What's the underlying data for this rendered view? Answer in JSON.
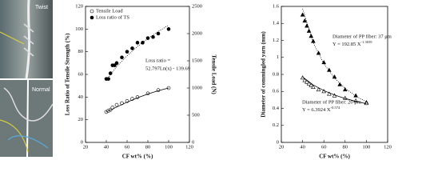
{
  "photos": {
    "top_label": "Twist",
    "bottom_label": "Normal"
  },
  "chart_data": [
    {
      "type": "scatter",
      "x_label": "CF wt% (%)",
      "y_label": "Loss Ratio of Tensile Strength (%)",
      "y2_label": "Tensile Load (N)",
      "xlim": [
        20,
        120
      ],
      "xticks": [
        20,
        40,
        60,
        80,
        100,
        120
      ],
      "ylim": [
        0,
        120
      ],
      "yticks": [
        0,
        20,
        40,
        60,
        80,
        100,
        120
      ],
      "y2lim": [
        0,
        2500
      ],
      "y2ticks": [
        0,
        500,
        1000,
        1500,
        2000,
        2500
      ],
      "legend": "top-left",
      "annotations": [
        "Loss ratio =",
        "52.797Ln(x) - 139.69"
      ],
      "series": [
        {
          "name": "Tensile Load",
          "marker": "circle-open",
          "axis": "y2",
          "x": [
            40,
            42,
            44,
            46,
            50,
            55,
            60,
            65,
            70,
            80,
            90,
            100
          ],
          "values": [
            560,
            580,
            600,
            640,
            690,
            720,
            760,
            800,
            830,
            900,
            960,
            1000
          ]
        },
        {
          "name": "Loss ratio of TS",
          "marker": "circle-filled",
          "x": [
            40,
            42,
            44,
            46,
            48,
            50,
            55,
            60,
            65,
            70,
            75,
            80,
            85,
            90,
            100
          ],
          "values": [
            56,
            56,
            61,
            68,
            68,
            70,
            75,
            80,
            83,
            88,
            88,
            92,
            93,
            96,
            100
          ]
        },
        {
          "style": "solid",
          "axis": "y2",
          "x": [
            40,
            50,
            60,
            70,
            80,
            90,
            100
          ],
          "values": [
            560,
            650,
            740,
            820,
            890,
            950,
            1000
          ]
        },
        {
          "style": "dotted",
          "x": [
            40,
            50,
            60,
            70,
            80,
            90,
            100
          ],
          "values": [
            55.07,
            66.85,
            76.48,
            84.62,
            91.67,
            97.88,
            103.45
          ]
        }
      ]
    },
    {
      "type": "scatter",
      "x_label": "CF wt% (%)",
      "y_label": "Diameter of commingled yarn (mm)",
      "xlim": [
        20,
        120
      ],
      "xticks": [
        20,
        40,
        60,
        80,
        100,
        120
      ],
      "ylim": [
        0,
        1.6
      ],
      "yticks": [
        0,
        0.2,
        0.4,
        0.6,
        0.8,
        1,
        1.2,
        1.4,
        1.6
      ],
      "annotations": [
        [
          "Diameter of PP fiber: 37 μm",
          "Y = 192.85  X",
          "-1.3039"
        ],
        [
          "Diameter of PP fiber: 20 μm",
          "Y = 6.3924  X",
          "-0.574"
        ]
      ],
      "series": [
        {
          "marker": "triangle-filled",
          "x": [
            40,
            42,
            44,
            46,
            48,
            50,
            55,
            60,
            65,
            70,
            75,
            80,
            90,
            100
          ],
          "values": [
            1.5,
            1.43,
            1.37,
            1.31,
            1.25,
            1.19,
            1.05,
            0.94,
            0.85,
            0.77,
            0.68,
            0.62,
            0.55,
            0.47
          ]
        },
        {
          "marker": "triangle-open",
          "x": [
            40,
            42,
            44,
            46,
            48,
            50,
            55,
            60,
            65,
            70,
            80,
            90,
            100
          ],
          "values": [
            0.76,
            0.73,
            0.71,
            0.69,
            0.67,
            0.65,
            0.62,
            0.6,
            0.57,
            0.55,
            0.52,
            0.49,
            0.46
          ]
        },
        {
          "style": "dotted",
          "x": [
            40,
            50,
            60,
            70,
            80,
            90,
            100
          ],
          "values": [
            1.572,
            1.175,
            0.926,
            0.757,
            0.637,
            0.546,
            0.476
          ]
        },
        {
          "style": "solid",
          "x": [
            40,
            50,
            60,
            70,
            80,
            90,
            100
          ],
          "values": [
            0.77,
            0.676,
            0.61,
            0.558,
            0.517,
            0.483,
            0.455
          ]
        }
      ]
    }
  ]
}
